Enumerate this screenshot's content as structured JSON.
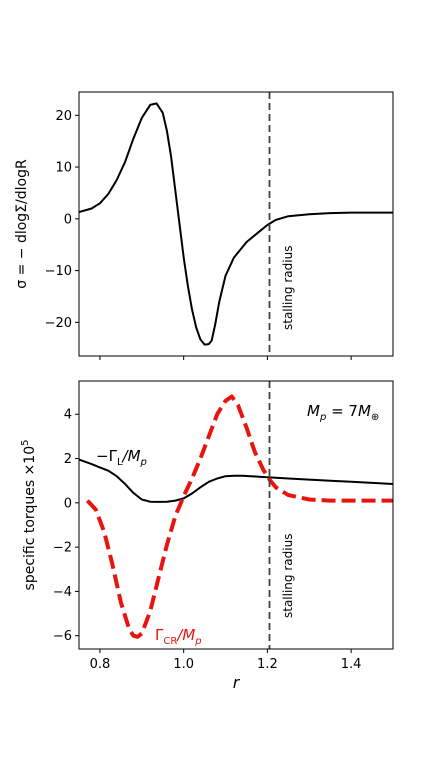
{
  "chart_data": [
    {
      "type": "line",
      "ylabel": "σ = − dlogΣ/dlogR",
      "xlabel": "",
      "xlim": [
        0.75,
        1.5
      ],
      "ylim": [
        -26.5,
        24.5
      ],
      "yticks": [
        {
          "value": 20,
          "label": "20"
        },
        {
          "value": 10,
          "label": "10"
        },
        {
          "value": 0,
          "label": "0"
        },
        {
          "value": -10,
          "label": "−10"
        },
        {
          "value": -20,
          "label": "−20"
        }
      ],
      "xticks": [
        0.8,
        1.0,
        1.2,
        1.4
      ],
      "show_xtick_labels": false,
      "vline": {
        "x": 1.205,
        "label": "stalling radius",
        "style": "dashed",
        "color": "#404040"
      },
      "series": [
        {
          "color": "#000000",
          "style": "solid",
          "x": [
            0.75,
            0.78,
            0.8,
            0.82,
            0.84,
            0.86,
            0.88,
            0.9,
            0.92,
            0.935,
            0.95,
            0.96,
            0.97,
            0.98,
            0.99,
            1.0,
            1.01,
            1.02,
            1.03,
            1.04,
            1.05,
            1.06,
            1.067,
            1.075,
            1.085,
            1.1,
            1.12,
            1.15,
            1.18,
            1.2,
            1.22,
            1.25,
            1.3,
            1.35,
            1.4,
            1.45,
            1.5
          ],
          "y": [
            1.3,
            2.0,
            3.0,
            4.8,
            7.5,
            11.0,
            15.5,
            19.5,
            22.0,
            22.3,
            20.5,
            17.0,
            12.0,
            5.5,
            -1.0,
            -7.5,
            -13.0,
            -17.5,
            -21.0,
            -23.3,
            -24.3,
            -24.2,
            -23.5,
            -20.5,
            -16.0,
            -11.0,
            -7.5,
            -4.5,
            -2.5,
            -1.2,
            -0.2,
            0.5,
            0.9,
            1.1,
            1.2,
            1.2,
            1.2
          ]
        }
      ]
    },
    {
      "type": "line",
      "ylabel": "specific torques ×10",
      "ylabel_superscript": "5",
      "xlabel": "r",
      "xlim": [
        0.75,
        1.5
      ],
      "ylim": [
        -6.6,
        5.5
      ],
      "yticks": [
        {
          "value": 4,
          "label": "4"
        },
        {
          "value": 2,
          "label": "2"
        },
        {
          "value": 0,
          "label": "0"
        },
        {
          "value": -2,
          "label": "−2"
        },
        {
          "value": -4,
          "label": "−4"
        },
        {
          "value": -6,
          "label": "−6"
        }
      ],
      "xticks": [
        0.8,
        1.0,
        1.2,
        1.4
      ],
      "xtick_labels": [
        "0.8",
        "1.0",
        "1.2",
        "1.4"
      ],
      "vline": {
        "x": 1.205,
        "label": "stalling radius",
        "style": "dashed",
        "color": "#404040"
      },
      "mass_annotation": {
        "main": "M",
        "sub_p": "p",
        "eq": " = 7",
        "main2": "M",
        "sub_earth": "⊕"
      },
      "series": [
        {
          "name_prefix": "−Γ",
          "name_sub": "L",
          "name_suffix": "/M",
          "name_suffix_sub": "p",
          "color": "#000000",
          "style": "solid",
          "x": [
            0.75,
            0.78,
            0.8,
            0.82,
            0.84,
            0.86,
            0.88,
            0.9,
            0.92,
            0.94,
            0.96,
            0.98,
            1.0,
            1.02,
            1.04,
            1.06,
            1.08,
            1.1,
            1.12,
            1.14,
            1.16,
            1.18,
            1.2,
            1.25,
            1.3,
            1.35,
            1.4,
            1.45,
            1.5
          ],
          "y": [
            1.95,
            1.75,
            1.6,
            1.45,
            1.2,
            0.85,
            0.45,
            0.15,
            0.05,
            0.04,
            0.05,
            0.1,
            0.2,
            0.42,
            0.7,
            0.95,
            1.1,
            1.2,
            1.22,
            1.22,
            1.2,
            1.18,
            1.15,
            1.1,
            1.05,
            1.0,
            0.95,
            0.9,
            0.85
          ]
        },
        {
          "name_prefix": "Γ",
          "name_sub": "CR",
          "name_suffix": "/M",
          "name_suffix_sub": "p",
          "color": "#e8140e",
          "style": "dashed",
          "x": [
            0.77,
            0.79,
            0.81,
            0.83,
            0.85,
            0.87,
            0.88,
            0.89,
            0.9,
            0.92,
            0.94,
            0.96,
            0.98,
            1.0,
            1.02,
            1.04,
            1.06,
            1.08,
            1.1,
            1.115,
            1.13,
            1.15,
            1.17,
            1.19,
            1.205,
            1.22,
            1.25,
            1.3,
            1.35,
            1.4,
            1.45,
            1.5
          ],
          "y": [
            0.1,
            -0.3,
            -1.3,
            -2.8,
            -4.5,
            -5.7,
            -6.0,
            -6.05,
            -5.9,
            -4.9,
            -3.4,
            -1.9,
            -0.6,
            0.3,
            1.1,
            2.0,
            3.0,
            4.0,
            4.6,
            4.8,
            4.4,
            3.4,
            2.3,
            1.5,
            1.05,
            0.7,
            0.35,
            0.15,
            0.1,
            0.1,
            0.1,
            0.1
          ]
        }
      ]
    }
  ]
}
